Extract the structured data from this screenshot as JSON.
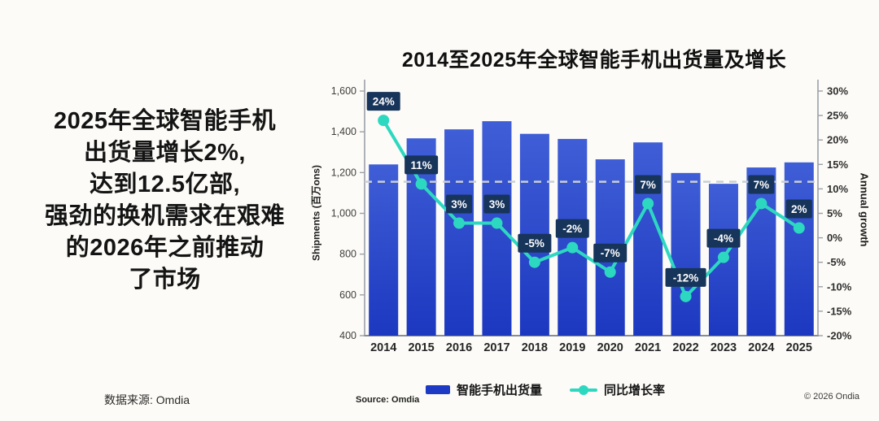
{
  "colors": {
    "background": "#fcfbf7",
    "bar_top": "#3f5ed6",
    "bar_bottom": "#1c38c0",
    "bar_solid": "#1d3ac4",
    "line": "#2dd8c0",
    "label_box": "#17345a",
    "label_text": "#ffffff",
    "dashed_line": "#c9ced5",
    "axis": "#9aa1a8",
    "tick_text": "#3f3f3f",
    "year_text": "#262626"
  },
  "left_panel": {
    "lines": [
      "2025年全球智能手机",
      "出货量增长2%,",
      "达到12.5亿部,",
      "强劲的换机需求在艰难",
      "的2026年之前推动",
      "了市场"
    ],
    "source_label": "数据来源: Omdia"
  },
  "chart": {
    "title": "2014至2025年全球智能手机出货量及增长",
    "left_axis_title": "Shipments (百万ons)",
    "right_axis_title": "Annual growth",
    "source": "Source: Omdia",
    "copyright": "© 2026 Ondia",
    "legend": {
      "bar_label": "智能手机出货量",
      "line_label": "同比增长率"
    }
  },
  "chart_data": {
    "type": "bar+line",
    "title": "2014至2025年全球智能手机出货量及增长",
    "categories": [
      "2014",
      "2015",
      "2016",
      "2017",
      "2018",
      "2019",
      "2020",
      "2021",
      "2022",
      "2023",
      "2024",
      "2025"
    ],
    "series": [
      {
        "name": "智能手机出货量",
        "type": "bar",
        "axis": "left",
        "unit": "millions",
        "values": [
          1240,
          1368,
          1412,
          1452,
          1390,
          1365,
          1265,
          1348,
          1198,
          1145,
          1225,
          1250
        ]
      },
      {
        "name": "同比增长率",
        "type": "line",
        "axis": "right",
        "unit": "%",
        "values": [
          24,
          11,
          3,
          3,
          -5,
          -2,
          -7,
          7,
          -12,
          -4,
          7,
          2
        ]
      }
    ],
    "left_axis": {
      "label": "Shipments (百万ons)",
      "min": 400,
      "max": 1600,
      "step": 200
    },
    "right_axis": {
      "label": "Annual growth",
      "min": -20,
      "max": 30,
      "step": 5,
      "suffix": "%"
    },
    "reference_line": {
      "axis": "left",
      "value": 1155,
      "style": "dashed"
    },
    "grid": false,
    "legend_position": "bottom"
  }
}
